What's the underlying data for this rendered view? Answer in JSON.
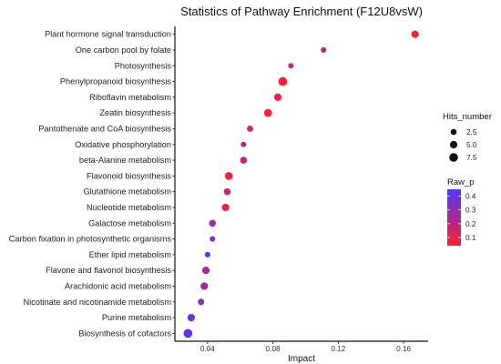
{
  "chart_data": {
    "type": "scatter",
    "title": "Statistics of Pathway Enrichment (F12U8vsW)",
    "xlabel": "Impact",
    "ylabel": "",
    "xlim": [
      0.02,
      0.175
    ],
    "x_ticks": [
      0.04,
      0.08,
      0.12,
      0.16
    ],
    "x_tick_labels": [
      "0.04",
      "0.08",
      "0.12",
      "0.16"
    ],
    "grid": false,
    "legend_position": "right",
    "categories": [
      "Plant hormone signal transduction",
      "One carbon pool by folate",
      "Photosynthesis",
      "Phenylpropanoid biosynthesis",
      "Riboflavin metabolism",
      "Zeatin biosynthesis",
      "Pantothenate and CoA biosynthesis",
      "Oxidative phosphorylation",
      "beta-Alanine metabolism",
      "Flavonoid biosynthesis",
      "Glutathione metabolism",
      "Nucleotide metabolism",
      "Galactose metabolism",
      "Carbon fixation in photosynthetic organisms",
      "Ether lipid metabolism",
      "Flavone and flavonol biosynthesis",
      "Arachidonic acid metabolism",
      "Nicotinate and nicotinamide metabolism",
      "Purine metabolism",
      "Biosynthesis of cofactors"
    ],
    "points": [
      {
        "pathway": "Plant hormone signal transduction",
        "impact": 0.167,
        "hits": 5,
        "raw_p": 0.06
      },
      {
        "pathway": "One carbon pool by folate",
        "impact": 0.111,
        "hits": 2,
        "raw_p": 0.21
      },
      {
        "pathway": "Photosynthesis",
        "impact": 0.091,
        "hits": 2,
        "raw_p": 0.18
      },
      {
        "pathway": "Phenylpropanoid biosynthesis",
        "impact": 0.086,
        "hits": 8,
        "raw_p": 0.05
      },
      {
        "pathway": "Riboflavin metabolism",
        "impact": 0.083,
        "hits": 5,
        "raw_p": 0.08
      },
      {
        "pathway": "Zeatin biosynthesis",
        "impact": 0.077,
        "hits": 6,
        "raw_p": 0.06
      },
      {
        "pathway": "Pantothenate and CoA biosynthesis",
        "impact": 0.066,
        "hits": 3,
        "raw_p": 0.11
      },
      {
        "pathway": "Oxidative phosphorylation",
        "impact": 0.062,
        "hits": 2,
        "raw_p": 0.24
      },
      {
        "pathway": "beta-Alanine metabolism",
        "impact": 0.062,
        "hits": 4,
        "raw_p": 0.16
      },
      {
        "pathway": "Flavonoid biosynthesis",
        "impact": 0.053,
        "hits": 6,
        "raw_p": 0.07
      },
      {
        "pathway": "Glutathione metabolism",
        "impact": 0.052,
        "hits": 4,
        "raw_p": 0.14
      },
      {
        "pathway": "Nucleotide metabolism",
        "impact": 0.051,
        "hits": 5,
        "raw_p": 0.09
      },
      {
        "pathway": "Galactose metabolism",
        "impact": 0.043,
        "hits": 4,
        "raw_p": 0.28
      },
      {
        "pathway": "Carbon fixation in photosynthetic organisms",
        "impact": 0.043,
        "hits": 2,
        "raw_p": 0.33
      },
      {
        "pathway": "Ether lipid metabolism",
        "impact": 0.04,
        "hits": 2,
        "raw_p": 0.43
      },
      {
        "pathway": "Flavone and flavonol biosynthesis",
        "impact": 0.039,
        "hits": 5,
        "raw_p": 0.25
      },
      {
        "pathway": "Arachidonic acid metabolism",
        "impact": 0.038,
        "hits": 5,
        "raw_p": 0.27
      },
      {
        "pathway": "Nicotinate and nicotinamide metabolism",
        "impact": 0.036,
        "hits": 3,
        "raw_p": 0.3
      },
      {
        "pathway": "Purine metabolism",
        "impact": 0.03,
        "hits": 5,
        "raw_p": 0.38
      },
      {
        "pathway": "Biosynthesis of cofactors",
        "impact": 0.028,
        "hits": 8,
        "raw_p": 0.41
      }
    ],
    "legend_size": {
      "title": "Hits_number",
      "values": [
        2.5,
        5.0,
        7.5
      ],
      "labels": [
        "2.5",
        "5.0",
        "7.5"
      ]
    },
    "legend_color": {
      "title": "Raw_p",
      "domain": [
        0.04,
        0.45
      ],
      "ticks": [
        0.1,
        0.2,
        0.3,
        0.4
      ],
      "tick_labels": [
        "0.1",
        "0.2",
        "0.3",
        "0.4"
      ],
      "low_color": "#ff1f2d",
      "high_color": "#4e35ff"
    }
  }
}
